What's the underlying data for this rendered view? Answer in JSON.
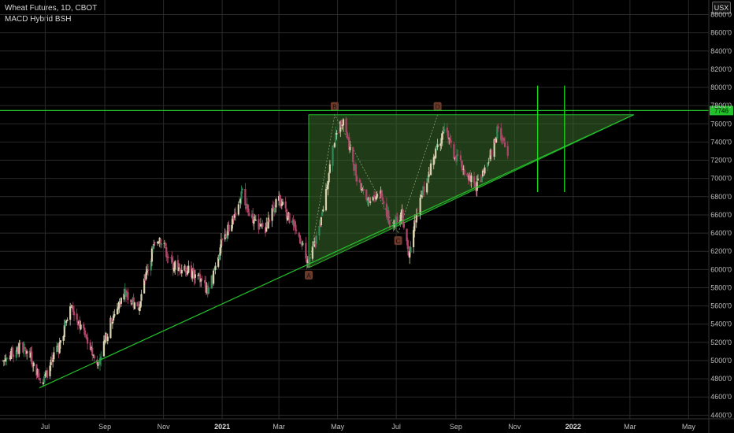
{
  "header": {
    "title": "Wheat Futures, 1D, CBOT",
    "indicator": "MACD Hybrid BSH",
    "currency": "USX"
  },
  "colors": {
    "background": "#000000",
    "grid": "#2a2a2a",
    "up_candle": "#d8d2b0",
    "down_candle": "#b0456a",
    "up_candle_alt": "#2e8b57",
    "trendline": "#22c02a",
    "pattern_fill": "#3a6b2a",
    "pattern_label": "#6b3a2a",
    "vertical_marker": "#18d818"
  },
  "chart_data": {
    "type": "candlestick",
    "title": "Wheat Futures, 1D, CBOT",
    "ylabel": "",
    "xlabel": "",
    "ylim": [
      4360,
      8960
    ],
    "grid": true,
    "y_ticks": [
      "4400'0",
      "4600'0",
      "4800'0",
      "5000'0",
      "5200'0",
      "5400'0",
      "5600'0",
      "5800'0",
      "6000'0",
      "6200'0",
      "6400'0",
      "6600'0",
      "6800'0",
      "7000'0",
      "7200'0",
      "7400'0",
      "7600'0",
      "7800'0",
      "8000'0",
      "8200'0",
      "8400'0",
      "8600'0",
      "8800'0"
    ],
    "y_tick_values": [
      4400,
      4600,
      4800,
      5000,
      5200,
      5400,
      5600,
      5800,
      6000,
      6200,
      6400,
      6600,
      6800,
      7000,
      7200,
      7400,
      7600,
      7800,
      8000,
      8200,
      8400,
      8600,
      8800
    ],
    "x_ticks": [
      {
        "label": "Jul",
        "date": "2020-07-01",
        "bold": false
      },
      {
        "label": "Sep",
        "date": "2020-09-01",
        "bold": false
      },
      {
        "label": "Nov",
        "date": "2020-11-01",
        "bold": false
      },
      {
        "label": "2021",
        "date": "2021-01-01",
        "bold": true
      },
      {
        "label": "Mar",
        "date": "2021-03-01",
        "bold": false
      },
      {
        "label": "May",
        "date": "2021-05-01",
        "bold": false
      },
      {
        "label": "Jul",
        "date": "2021-07-01",
        "bold": false
      },
      {
        "label": "Sep",
        "date": "2021-09-01",
        "bold": false
      },
      {
        "label": "Nov",
        "date": "2021-11-01",
        "bold": false
      },
      {
        "label": "2022",
        "date": "2022-01-01",
        "bold": true
      },
      {
        "label": "Mar",
        "date": "2022-03-01",
        "bold": false
      },
      {
        "label": "May",
        "date": "2022-05-01",
        "bold": false
      }
    ],
    "price_path": [
      [
        "2020-05-18",
        5000
      ],
      [
        "2020-06-05",
        5150
      ],
      [
        "2020-06-15",
        5050
      ],
      [
        "2020-06-28",
        4750
      ],
      [
        "2020-07-15",
        5150
      ],
      [
        "2020-07-28",
        5600
      ],
      [
        "2020-08-10",
        5300
      ],
      [
        "2020-08-24",
        4950
      ],
      [
        "2020-09-08",
        5450
      ],
      [
        "2020-09-22",
        5750
      ],
      [
        "2020-10-05",
        5550
      ],
      [
        "2020-10-20",
        6200
      ],
      [
        "2020-10-28",
        6350
      ],
      [
        "2020-11-10",
        6050
      ],
      [
        "2020-11-25",
        6000
      ],
      [
        "2020-12-08",
        5900
      ],
      [
        "2020-12-18",
        5750
      ],
      [
        "2020-12-30",
        6250
      ],
      [
        "2021-01-12",
        6550
      ],
      [
        "2021-01-22",
        6850
      ],
      [
        "2021-02-03",
        6500
      ],
      [
        "2021-02-15",
        6450
      ],
      [
        "2021-02-28",
        6800
      ],
      [
        "2021-03-12",
        6550
      ],
      [
        "2021-03-25",
        6300
      ],
      [
        "2021-04-01",
        6050
      ],
      [
        "2021-04-14",
        6550
      ],
      [
        "2021-04-27",
        7400
      ],
      [
        "2021-05-07",
        7650
      ],
      [
        "2021-05-20",
        7050
      ],
      [
        "2021-06-02",
        6750
      ],
      [
        "2021-06-14",
        6850
      ],
      [
        "2021-06-25",
        6500
      ],
      [
        "2021-07-07",
        6600
      ],
      [
        "2021-07-14",
        6200
      ],
      [
        "2021-07-25",
        6750
      ],
      [
        "2021-08-05",
        7100
      ],
      [
        "2021-08-20",
        7550
      ],
      [
        "2021-08-30",
        7250
      ],
      [
        "2021-09-10",
        7100
      ],
      [
        "2021-09-22",
        6900
      ],
      [
        "2021-10-05",
        7200
      ],
      [
        "2021-10-15",
        7550
      ],
      [
        "2021-10-25",
        7250
      ]
    ],
    "pattern": {
      "name": "ascending triangle",
      "points": [
        {
          "label": "A",
          "date": "2021-04-01",
          "price": 6020
        },
        {
          "label": "B",
          "date": "2021-04-28",
          "price": 7700
        },
        {
          "label": "C",
          "date": "2021-07-03",
          "price": 6400
        },
        {
          "label": "D",
          "date": "2021-08-13",
          "price": 7700
        }
      ],
      "resistance_price": 7700
    },
    "trendlines": [
      {
        "name": "rising support",
        "from": {
          "date": "2020-06-25",
          "price": 4700
        },
        "to": {
          "date": "2022-03-05",
          "price": 7700
        }
      }
    ],
    "horizontal_line": {
      "price": 7746,
      "label": "7746"
    },
    "vertical_markers": [
      {
        "date": "2021-11-25",
        "from_price": 6850,
        "to_price": 8020
      },
      {
        "date": "2021-12-23",
        "from_price": 6850,
        "to_price": 8020
      }
    ],
    "last_price_label": "7746"
  }
}
